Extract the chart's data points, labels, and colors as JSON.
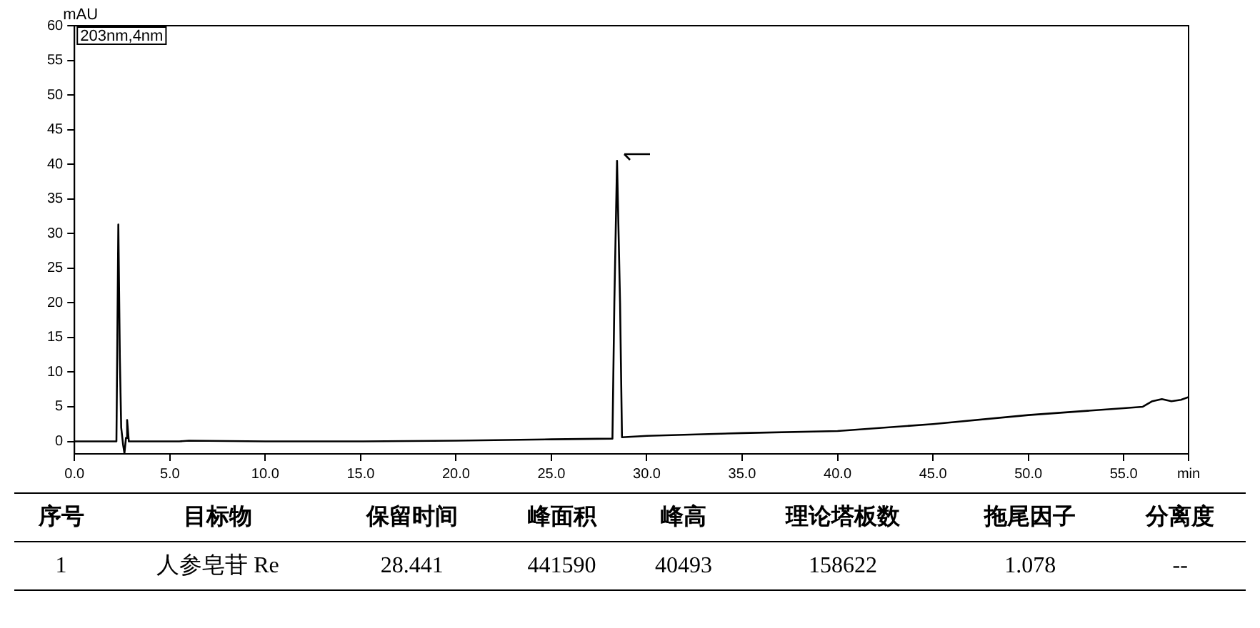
{
  "chart_data": {
    "type": "line",
    "ylabel": "mAU",
    "annotations": [
      "203nm,4nm",
      "序号",
      "目标物",
      "保留时间",
      "峰面积",
      "峰高",
      "理论塔板数",
      "拖尾因子",
      "分离度",
      "1",
      "人参皂苷 Re",
      "28.441",
      "441590",
      "40493",
      "158622",
      "1.078",
      "--"
    ],
    "x": [
      0,
      2.2,
      2.3,
      2.38,
      2.45,
      2.55,
      2.62,
      2.7,
      2.76,
      2.85,
      3.0,
      5.5,
      6.0,
      10,
      15,
      20,
      25,
      28.2,
      28.3,
      28.441,
      28.6,
      28.7,
      30,
      35,
      40,
      45,
      50,
      55,
      56,
      56.5,
      57,
      57.5,
      58,
      58.4
    ],
    "series": [
      {
        "color": "#000000",
        "values": [
          0,
          0,
          31.3,
          12,
          2,
          -0.5,
          -1.7,
          0.5,
          3.1,
          0,
          0,
          0,
          0.1,
          0,
          0,
          0.1,
          0.3,
          0.4,
          20,
          40.5,
          20,
          0.6,
          0.8,
          1.2,
          1.5,
          2.5,
          3.8,
          4.8,
          5.0,
          5.8,
          6.1,
          5.8,
          6.0,
          6.4
        ]
      }
    ],
    "xlim": [
      0,
      58.4
    ],
    "xticks": [
      {
        "value": 0,
        "label": "0.0"
      },
      {
        "value": 5,
        "label": "5.0"
      },
      {
        "value": 10,
        "label": "10.0"
      },
      {
        "value": 15,
        "label": "15.0"
      },
      {
        "value": 20,
        "label": "20.0"
      },
      {
        "value": 25,
        "label": "25.0"
      },
      {
        "value": 30,
        "label": "30.0"
      },
      {
        "value": 35,
        "label": "35.0"
      },
      {
        "value": 40,
        "label": "40.0"
      },
      {
        "value": 45,
        "label": "45.0"
      },
      {
        "value": 50,
        "label": "50.0"
      },
      {
        "value": 55,
        "label": "55.0"
      },
      {
        "value": 58.4,
        "label": "min"
      }
    ],
    "ylim": [
      -1.8,
      60
    ],
    "yticks": [
      0,
      5,
      10,
      15,
      20,
      25,
      30,
      35,
      40,
      45,
      50,
      55,
      60
    ],
    "grid": false,
    "legend": false,
    "marker": "none",
    "line_style": "solid"
  }
}
